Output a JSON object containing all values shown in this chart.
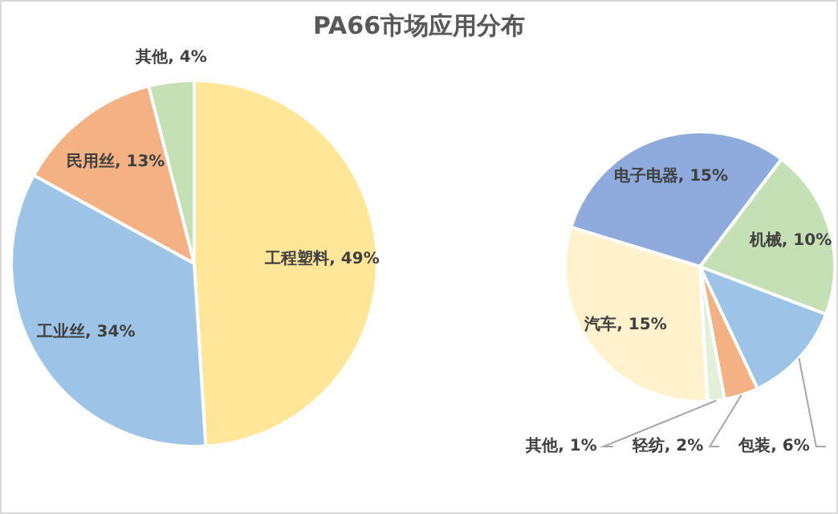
{
  "chart_data": [
    {
      "type": "pie",
      "title": "PA66市场应用分布",
      "categories": [
        "工程塑料",
        "工业丝",
        "民用丝",
        "其他"
      ],
      "values": [
        49,
        34,
        13,
        4
      ],
      "colors": [
        "#ffe699",
        "#9dc3e6",
        "#f4b183",
        "#c5e0b4"
      ],
      "value_labels": [
        "49%",
        "34%",
        "13%",
        "4%"
      ],
      "legend": false
    },
    {
      "type": "pie",
      "categories": [
        "电子电器",
        "机械",
        "包装",
        "轻纺",
        "其他",
        "汽车"
      ],
      "values": [
        15,
        10,
        6,
        2,
        1,
        15
      ],
      "colors": [
        "#8faadc",
        "#c5e0b4",
        "#9dc3e6",
        "#f4b183",
        "#e2f0d9",
        "#fff2cc"
      ],
      "value_labels": [
        "15%",
        "10%",
        "6%",
        "2%",
        "1%",
        "15%"
      ],
      "legend": false
    }
  ]
}
